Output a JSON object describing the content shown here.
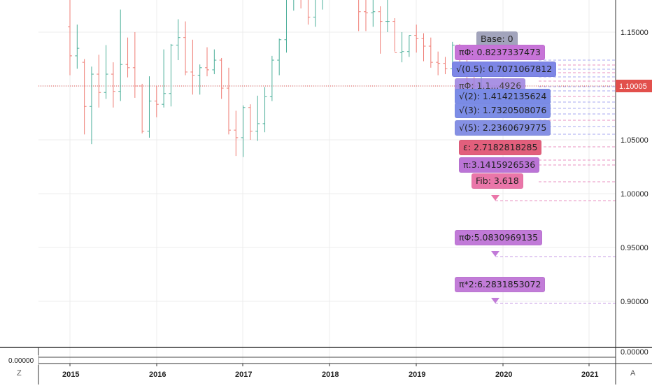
{
  "price_scale": {
    "ticks": [
      "1.15000",
      "1.10000",
      "1.05000",
      "1.00000",
      "0.95000",
      "0.90000"
    ],
    "current_price_label": "1.10005",
    "current_price_color": "#e2504c"
  },
  "indicator_scale": {
    "left_label": "0.00000",
    "right_label": "0.00000"
  },
  "time_axis": {
    "years": [
      "2015",
      "2016",
      "2017",
      "2018",
      "2019",
      "2020",
      "2021"
    ]
  },
  "buttons": {
    "z_label": "Z",
    "auto_label": "A"
  },
  "colors": {
    "up_bar": "#4caf9a",
    "down_bar": "#ef7d75",
    "grid": "#ececec",
    "purple_label": "#b96fd6",
    "blue_label": "#7b86e4",
    "pink_label": "#e572a8",
    "gray_label": "#9a9db5"
  },
  "level_labels": [
    {
      "text": "Base: 0",
      "color": "#a2a4bc"
    },
    {
      "text": "πΦ: 0.8237337473",
      "color": "#c774d8"
    },
    {
      "text": "√(0.5): 0.7071067812",
      "color": "#7d86e6"
    },
    {
      "text": "πΦ: 1.1...4926",
      "color": "#9b7fe0"
    },
    {
      "text": "√(2): 1.4142135624",
      "color": "#7a8be6"
    },
    {
      "text": "√(3): 1.7320508076",
      "color": "#7c8de6"
    },
    {
      "text": "√(5): 2.2360679775",
      "color": "#8590e4"
    },
    {
      "text": "ε: 2.7182818285",
      "color": "#e25f7c"
    },
    {
      "text": "π:3.1415926536",
      "color": "#bb74d6"
    },
    {
      "text": "Fib: 3.618",
      "color": "#ea76a9"
    },
    {
      "text": "πΦ:5.0830969135",
      "color": "#c17ad8"
    },
    {
      "text": "π*2:6.2831853072",
      "color": "#c27cd8"
    }
  ],
  "chart_data": {
    "type": "ohlc",
    "series": "monthly bars",
    "x_range": [
      "2015-01",
      "2021-06"
    ],
    "y_range": [
      0.87,
      1.18
    ],
    "last_price": 1.10005,
    "grid": true,
    "bars": [
      {
        "t": "2015-01",
        "o": 1.155,
        "h": 1.18,
        "l": 1.11,
        "c": 1.128,
        "up": false
      },
      {
        "t": "2015-02",
        "o": 1.128,
        "h": 1.157,
        "l": 1.116,
        "c": 1.135,
        "up": true
      },
      {
        "t": "2015-03",
        "o": 1.122,
        "h": 1.125,
        "l": 1.055,
        "c": 1.081,
        "up": false
      },
      {
        "t": "2015-04",
        "o": 1.081,
        "h": 1.118,
        "l": 1.046,
        "c": 1.111,
        "up": true
      },
      {
        "t": "2015-05",
        "o": 1.111,
        "h": 1.129,
        "l": 1.08,
        "c": 1.094,
        "up": false
      },
      {
        "t": "2015-06",
        "o": 1.094,
        "h": 1.138,
        "l": 1.088,
        "c": 1.111,
        "up": true
      },
      {
        "t": "2015-07",
        "o": 1.111,
        "h": 1.122,
        "l": 1.08,
        "c": 1.095,
        "up": false
      },
      {
        "t": "2015-08",
        "o": 1.095,
        "h": 1.171,
        "l": 1.086,
        "c": 1.12,
        "up": true
      },
      {
        "t": "2015-09",
        "o": 1.12,
        "h": 1.145,
        "l": 1.108,
        "c": 1.117,
        "up": false
      },
      {
        "t": "2015-10",
        "o": 1.117,
        "h": 1.15,
        "l": 1.089,
        "c": 1.1,
        "up": false
      },
      {
        "t": "2015-11",
        "o": 1.1,
        "h": 1.102,
        "l": 1.056,
        "c": 1.058,
        "up": false
      },
      {
        "t": "2015-12",
        "o": 1.058,
        "h": 1.109,
        "l": 1.052,
        "c": 1.086,
        "up": true
      },
      {
        "t": "2016-01",
        "o": 1.086,
        "h": 1.1,
        "l": 1.071,
        "c": 1.083,
        "up": false
      },
      {
        "t": "2016-02",
        "o": 1.083,
        "h": 1.134,
        "l": 1.08,
        "c": 1.093,
        "up": true
      },
      {
        "t": "2016-03",
        "o": 1.093,
        "h": 1.139,
        "l": 1.081,
        "c": 1.138,
        "up": true
      },
      {
        "t": "2016-04",
        "o": 1.138,
        "h": 1.162,
        "l": 1.124,
        "c": 1.145,
        "up": true
      },
      {
        "t": "2016-05",
        "o": 1.145,
        "h": 1.16,
        "l": 1.11,
        "c": 1.113,
        "up": false
      },
      {
        "t": "2016-06",
        "o": 1.113,
        "h": 1.143,
        "l": 1.092,
        "c": 1.11,
        "up": false
      },
      {
        "t": "2016-07",
        "o": 1.11,
        "h": 1.12,
        "l": 1.092,
        "c": 1.117,
        "up": true
      },
      {
        "t": "2016-08",
        "o": 1.117,
        "h": 1.136,
        "l": 1.109,
        "c": 1.115,
        "up": false
      },
      {
        "t": "2016-09",
        "o": 1.115,
        "h": 1.134,
        "l": 1.111,
        "c": 1.124,
        "up": true
      },
      {
        "t": "2016-10",
        "o": 1.124,
        "h": 1.126,
        "l": 1.088,
        "c": 1.098,
        "up": false
      },
      {
        "t": "2016-11",
        "o": 1.098,
        "h": 1.117,
        "l": 1.055,
        "c": 1.059,
        "up": false
      },
      {
        "t": "2016-12",
        "o": 1.059,
        "h": 1.077,
        "l": 1.035,
        "c": 1.052,
        "up": false
      },
      {
        "t": "2017-01",
        "o": 1.052,
        "h": 1.082,
        "l": 1.034,
        "c": 1.08,
        "up": true
      },
      {
        "t": "2017-02",
        "o": 1.08,
        "h": 1.083,
        "l": 1.05,
        "c": 1.058,
        "up": false
      },
      {
        "t": "2017-03",
        "o": 1.058,
        "h": 1.091,
        "l": 1.049,
        "c": 1.065,
        "up": true
      },
      {
        "t": "2017-04",
        "o": 1.065,
        "h": 1.099,
        "l": 1.057,
        "c": 1.09,
        "up": true
      },
      {
        "t": "2017-05",
        "o": 1.09,
        "h": 1.128,
        "l": 1.086,
        "c": 1.124,
        "up": true
      },
      {
        "t": "2017-06",
        "o": 1.124,
        "h": 1.144,
        "l": 1.11,
        "c": 1.143,
        "up": true
      },
      {
        "t": "2017-07",
        "o": 1.143,
        "h": 1.183,
        "l": 1.131,
        "c": 1.183,
        "up": true
      },
      {
        "t": "2017-08",
        "o": 1.183,
        "h": 1.2,
        "l": 1.17,
        "c": 1.19,
        "up": true
      },
      {
        "t": "2017-09",
        "o": 1.19,
        "h": 1.209,
        "l": 1.172,
        "c": 1.181,
        "up": false
      },
      {
        "t": "2017-10",
        "o": 1.181,
        "h": 1.188,
        "l": 1.157,
        "c": 1.164,
        "up": false
      },
      {
        "t": "2017-11",
        "o": 1.164,
        "h": 1.194,
        "l": 1.155,
        "c": 1.19,
        "up": true
      },
      {
        "t": "2017-12",
        "o": 1.19,
        "h": 1.203,
        "l": 1.171,
        "c": 1.2,
        "up": true
      },
      {
        "t": "2018-04",
        "o": 1.232,
        "h": 1.24,
        "l": 1.18,
        "c": 1.19,
        "up": false
      },
      {
        "t": "2018-05",
        "o": 1.19,
        "h": 1.2,
        "l": 1.151,
        "c": 1.169,
        "up": false
      },
      {
        "t": "2018-06",
        "o": 1.169,
        "h": 1.185,
        "l": 1.151,
        "c": 1.168,
        "up": false
      },
      {
        "t": "2018-07",
        "o": 1.168,
        "h": 1.185,
        "l": 1.155,
        "c": 1.169,
        "up": true
      },
      {
        "t": "2018-08",
        "o": 1.169,
        "h": 1.174,
        "l": 1.13,
        "c": 1.16,
        "up": false
      },
      {
        "t": "2018-09",
        "o": 1.16,
        "h": 1.181,
        "l": 1.15,
        "c": 1.16,
        "up": true
      },
      {
        "t": "2018-10",
        "o": 1.16,
        "h": 1.163,
        "l": 1.132,
        "c": 1.131,
        "up": false
      },
      {
        "t": "2018-11",
        "o": 1.131,
        "h": 1.15,
        "l": 1.122,
        "c": 1.132,
        "up": true
      },
      {
        "t": "2018-12",
        "o": 1.132,
        "h": 1.147,
        "l": 1.127,
        "c": 1.147,
        "up": true
      },
      {
        "t": "2019-01",
        "o": 1.147,
        "h": 1.157,
        "l": 1.131,
        "c": 1.144,
        "up": false
      },
      {
        "t": "2019-02",
        "o": 1.144,
        "h": 1.149,
        "l": 1.123,
        "c": 1.137,
        "up": false
      },
      {
        "t": "2019-03",
        "o": 1.137,
        "h": 1.145,
        "l": 1.117,
        "c": 1.122,
        "up": false
      },
      {
        "t": "2019-04",
        "o": 1.122,
        "h": 1.132,
        "l": 1.11,
        "c": 1.121,
        "up": false
      },
      {
        "t": "2019-05",
        "o": 1.121,
        "h": 1.127,
        "l": 1.111,
        "c": 1.116,
        "up": false
      },
      {
        "t": "2019-06",
        "o": 1.116,
        "h": 1.141,
        "l": 1.116,
        "c": 1.138,
        "up": true
      },
      {
        "t": "2019-07",
        "o": 1.138,
        "h": 1.139,
        "l": 1.11,
        "c": 1.114,
        "up": false
      },
      {
        "t": "2019-08",
        "o": 1.114,
        "h": 1.124,
        "l": 1.103,
        "c": 1.102,
        "up": false
      },
      {
        "t": "2019-09",
        "o": 1.102,
        "h": 1.113,
        "l": 1.088,
        "c": 1.09,
        "up": false
      },
      {
        "t": "2019-10",
        "o": 1.09,
        "h": 1.117,
        "l": 1.088,
        "c": 1.115,
        "up": true
      }
    ]
  }
}
